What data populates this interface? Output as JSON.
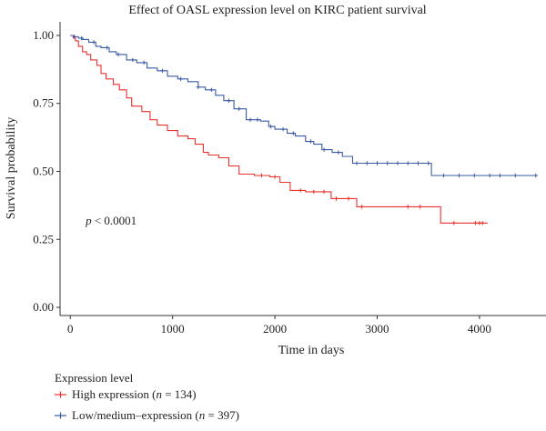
{
  "chart_data": {
    "type": "line",
    "title": "Effect of OASL expression level on KIRC patient survival",
    "xlabel": "Time in days",
    "ylabel": "Survival probability",
    "xlim": [
      -100,
      4650
    ],
    "ylim": [
      -0.03,
      1.05
    ],
    "x_ticks": [
      0,
      1000,
      2000,
      3000,
      4000
    ],
    "x_tick_labels": [
      "0",
      "1000",
      "2000",
      "3000",
      "4000"
    ],
    "y_ticks": [
      0.0,
      0.25,
      0.5,
      0.75,
      1.0
    ],
    "y_tick_labels": [
      "0.00",
      "0.25",
      "0.50",
      "0.75",
      "1.00"
    ],
    "annotation": {
      "text_italic": "p",
      "text_rest": " < 0.0001",
      "x": 150,
      "y": 0.305
    },
    "grid": false,
    "legend": {
      "title": "Expression level",
      "position": "bottom-left",
      "items": [
        {
          "prefix": "High expression (",
          "italic": "n",
          "suffix": " = 134)"
        },
        {
          "prefix": "Low/medium–expression (",
          "italic": "n",
          "suffix": " = 397)"
        }
      ]
    },
    "series": [
      {
        "name": "High expression",
        "color": "#e8322d",
        "steps": [
          [
            0,
            1.0
          ],
          [
            30,
            0.99
          ],
          [
            50,
            0.98
          ],
          [
            80,
            0.96
          ],
          [
            120,
            0.94
          ],
          [
            160,
            0.93
          ],
          [
            200,
            0.91
          ],
          [
            260,
            0.89
          ],
          [
            300,
            0.86
          ],
          [
            350,
            0.84
          ],
          [
            420,
            0.82
          ],
          [
            480,
            0.8
          ],
          [
            550,
            0.77
          ],
          [
            600,
            0.74
          ],
          [
            700,
            0.72
          ],
          [
            780,
            0.69
          ],
          [
            850,
            0.67
          ],
          [
            950,
            0.65
          ],
          [
            1050,
            0.63
          ],
          [
            1150,
            0.62
          ],
          [
            1220,
            0.6
          ],
          [
            1300,
            0.57
          ],
          [
            1350,
            0.56
          ],
          [
            1450,
            0.55
          ],
          [
            1550,
            0.52
          ],
          [
            1650,
            0.49
          ],
          [
            1800,
            0.485
          ],
          [
            1950,
            0.48
          ],
          [
            2050,
            0.46
          ],
          [
            2150,
            0.43
          ],
          [
            2300,
            0.425
          ],
          [
            2550,
            0.4
          ],
          [
            2800,
            0.37
          ],
          [
            3200,
            0.37
          ],
          [
            3620,
            0.31
          ],
          [
            4080,
            0.31
          ]
        ],
        "censor_x": [
          1870,
          2000,
          2250,
          2380,
          2480,
          2600,
          2720,
          2850,
          3300,
          3420,
          3750,
          3960,
          4000,
          4030
        ]
      },
      {
        "name": "Low/medium–expression",
        "color": "#3b5ba5",
        "steps": [
          [
            0,
            1.0
          ],
          [
            40,
            0.995
          ],
          [
            80,
            0.99
          ],
          [
            120,
            0.985
          ],
          [
            180,
            0.975
          ],
          [
            250,
            0.96
          ],
          [
            300,
            0.955
          ],
          [
            380,
            0.94
          ],
          [
            450,
            0.93
          ],
          [
            550,
            0.91
          ],
          [
            650,
            0.9
          ],
          [
            750,
            0.88
          ],
          [
            850,
            0.87
          ],
          [
            950,
            0.85
          ],
          [
            1050,
            0.84
          ],
          [
            1150,
            0.83
          ],
          [
            1250,
            0.81
          ],
          [
            1320,
            0.8
          ],
          [
            1420,
            0.78
          ],
          [
            1500,
            0.76
          ],
          [
            1600,
            0.73
          ],
          [
            1720,
            0.69
          ],
          [
            1860,
            0.685
          ],
          [
            1940,
            0.665
          ],
          [
            2000,
            0.655
          ],
          [
            2120,
            0.64
          ],
          [
            2200,
            0.63
          ],
          [
            2300,
            0.61
          ],
          [
            2380,
            0.6
          ],
          [
            2460,
            0.58
          ],
          [
            2560,
            0.57
          ],
          [
            2660,
            0.555
          ],
          [
            2760,
            0.53
          ],
          [
            3000,
            0.53
          ],
          [
            3530,
            0.485
          ],
          [
            4550,
            0.485
          ]
        ],
        "censor_x": [
          40,
          110,
          230,
          360,
          470,
          610,
          720,
          900,
          1080,
          1250,
          1380,
          1550,
          1650,
          1760,
          1830,
          1960,
          2080,
          2180,
          2350,
          2480,
          2620,
          2800,
          2900,
          3000,
          3100,
          3200,
          3300,
          3400,
          3500,
          3650,
          3800,
          3950,
          4100,
          4200,
          4350,
          4550
        ]
      }
    ]
  }
}
